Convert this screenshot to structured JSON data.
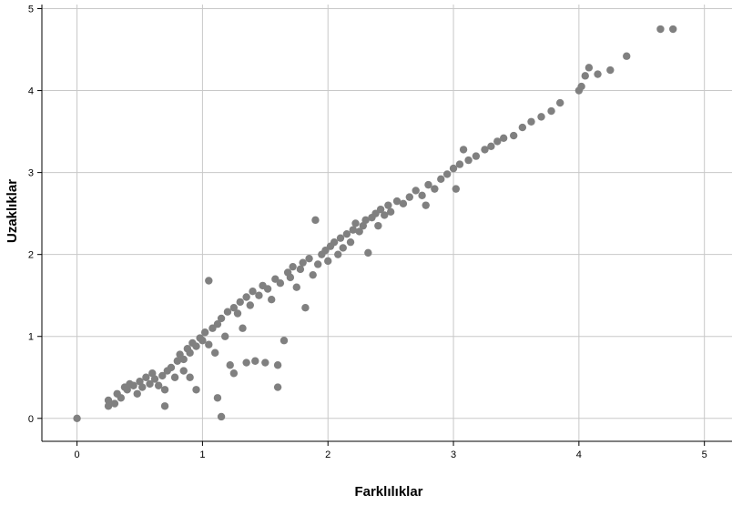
{
  "chart_data": {
    "type": "scatter",
    "title": "",
    "xlabel": "Farklılıklar",
    "ylabel": "Uzaklıklar",
    "xlim": [
      -0.28,
      5.22
    ],
    "ylim": [
      -0.28,
      5.05
    ],
    "x_ticks": [
      "0",
      "1",
      "2",
      "3",
      "4",
      "5"
    ],
    "y_ticks": [
      "0",
      "1",
      "2",
      "3",
      "4",
      "5"
    ],
    "grid": true,
    "marker_color": "#808080",
    "points": [
      [
        0.0,
        0.0
      ],
      [
        0.25,
        0.22
      ],
      [
        0.25,
        0.15
      ],
      [
        0.3,
        0.18
      ],
      [
        0.32,
        0.3
      ],
      [
        0.35,
        0.25
      ],
      [
        0.38,
        0.38
      ],
      [
        0.4,
        0.35
      ],
      [
        0.42,
        0.42
      ],
      [
        0.45,
        0.4
      ],
      [
        0.48,
        0.3
      ],
      [
        0.5,
        0.45
      ],
      [
        0.52,
        0.38
      ],
      [
        0.55,
        0.5
      ],
      [
        0.58,
        0.42
      ],
      [
        0.6,
        0.55
      ],
      [
        0.62,
        0.48
      ],
      [
        0.65,
        0.4
      ],
      [
        0.68,
        0.52
      ],
      [
        0.7,
        0.35
      ],
      [
        0.7,
        0.15
      ],
      [
        0.72,
        0.58
      ],
      [
        0.75,
        0.62
      ],
      [
        0.78,
        0.5
      ],
      [
        0.8,
        0.7
      ],
      [
        0.82,
        0.78
      ],
      [
        0.85,
        0.72
      ],
      [
        0.85,
        0.58
      ],
      [
        0.88,
        0.85
      ],
      [
        0.9,
        0.8
      ],
      [
        0.9,
        0.5
      ],
      [
        0.92,
        0.92
      ],
      [
        0.95,
        0.88
      ],
      [
        0.95,
        0.35
      ],
      [
        0.98,
        0.98
      ],
      [
        1.0,
        0.95
      ],
      [
        1.02,
        1.05
      ],
      [
        1.05,
        0.9
      ],
      [
        1.05,
        1.68
      ],
      [
        1.08,
        1.1
      ],
      [
        1.1,
        0.8
      ],
      [
        1.12,
        1.15
      ],
      [
        1.12,
        0.25
      ],
      [
        1.15,
        0.02
      ],
      [
        1.15,
        1.22
      ],
      [
        1.18,
        1.0
      ],
      [
        1.2,
        1.3
      ],
      [
        1.22,
        0.65
      ],
      [
        1.25,
        1.35
      ],
      [
        1.25,
        0.55
      ],
      [
        1.28,
        1.28
      ],
      [
        1.3,
        1.42
      ],
      [
        1.32,
        1.1
      ],
      [
        1.35,
        1.48
      ],
      [
        1.35,
        0.68
      ],
      [
        1.38,
        1.38
      ],
      [
        1.4,
        1.55
      ],
      [
        1.42,
        0.7
      ],
      [
        1.45,
        1.5
      ],
      [
        1.48,
        1.62
      ],
      [
        1.5,
        0.68
      ],
      [
        1.52,
        1.58
      ],
      [
        1.55,
        1.45
      ],
      [
        1.58,
        1.7
      ],
      [
        1.6,
        0.38
      ],
      [
        1.6,
        0.65
      ],
      [
        1.62,
        1.65
      ],
      [
        1.65,
        0.95
      ],
      [
        1.68,
        1.78
      ],
      [
        1.7,
        1.72
      ],
      [
        1.72,
        1.85
      ],
      [
        1.75,
        1.6
      ],
      [
        1.78,
        1.82
      ],
      [
        1.8,
        1.9
      ],
      [
        1.82,
        1.35
      ],
      [
        1.85,
        1.95
      ],
      [
        1.88,
        1.75
      ],
      [
        1.9,
        2.42
      ],
      [
        1.92,
        1.88
      ],
      [
        1.95,
        2.0
      ],
      [
        1.98,
        2.05
      ],
      [
        2.0,
        1.92
      ],
      [
        2.02,
        2.1
      ],
      [
        2.05,
        2.15
      ],
      [
        2.08,
        2.0
      ],
      [
        2.1,
        2.2
      ],
      [
        2.12,
        2.08
      ],
      [
        2.15,
        2.25
      ],
      [
        2.18,
        2.15
      ],
      [
        2.2,
        2.3
      ],
      [
        2.22,
        2.38
      ],
      [
        2.25,
        2.28
      ],
      [
        2.28,
        2.35
      ],
      [
        2.3,
        2.42
      ],
      [
        2.32,
        2.02
      ],
      [
        2.35,
        2.45
      ],
      [
        2.38,
        2.5
      ],
      [
        2.4,
        2.35
      ],
      [
        2.42,
        2.55
      ],
      [
        2.45,
        2.48
      ],
      [
        2.48,
        2.6
      ],
      [
        2.5,
        2.52
      ],
      [
        2.55,
        2.65
      ],
      [
        2.6,
        2.62
      ],
      [
        2.65,
        2.7
      ],
      [
        2.7,
        2.78
      ],
      [
        2.75,
        2.72
      ],
      [
        2.78,
        2.6
      ],
      [
        2.8,
        2.85
      ],
      [
        2.85,
        2.8
      ],
      [
        2.9,
        2.92
      ],
      [
        2.95,
        2.98
      ],
      [
        3.0,
        3.05
      ],
      [
        3.02,
        2.8
      ],
      [
        3.05,
        3.1
      ],
      [
        3.08,
        3.28
      ],
      [
        3.12,
        3.15
      ],
      [
        3.18,
        3.2
      ],
      [
        3.25,
        3.28
      ],
      [
        3.3,
        3.32
      ],
      [
        3.35,
        3.38
      ],
      [
        3.4,
        3.42
      ],
      [
        3.48,
        3.45
      ],
      [
        3.55,
        3.55
      ],
      [
        3.62,
        3.62
      ],
      [
        3.7,
        3.68
      ],
      [
        3.78,
        3.75
      ],
      [
        3.85,
        3.85
      ],
      [
        4.0,
        4.0
      ],
      [
        4.02,
        4.05
      ],
      [
        4.05,
        4.18
      ],
      [
        4.08,
        4.28
      ],
      [
        4.15,
        4.2
      ],
      [
        4.25,
        4.25
      ],
      [
        4.38,
        4.42
      ],
      [
        4.65,
        4.75
      ],
      [
        4.75,
        4.75
      ]
    ]
  }
}
